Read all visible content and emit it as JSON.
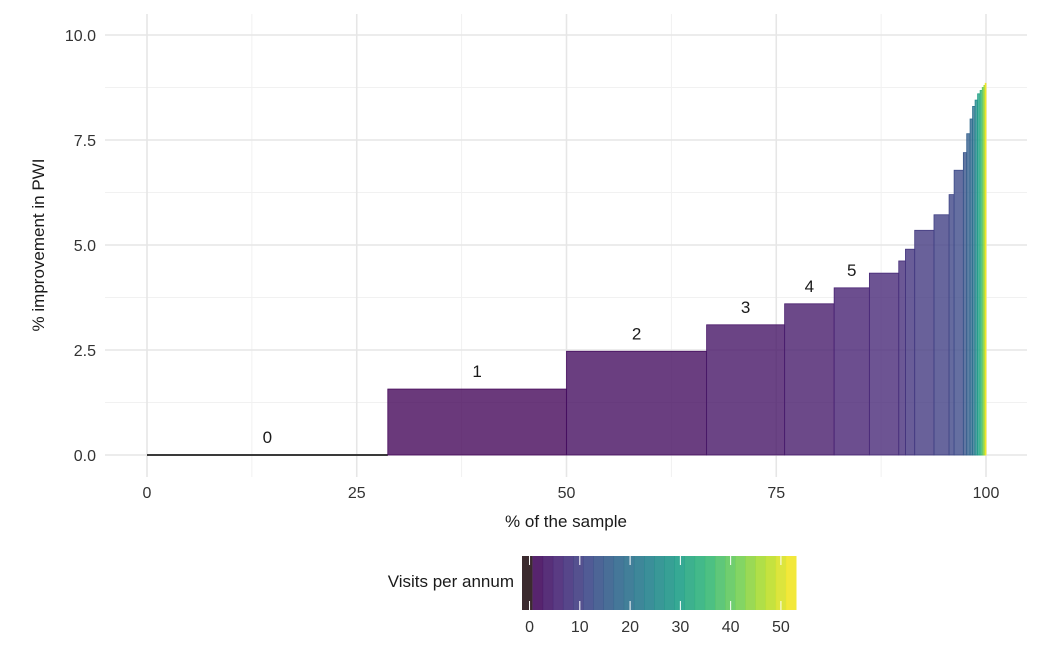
{
  "chart_data": {
    "type": "bar",
    "subtype": "variable-width step bars (cumulative sample share vs improvement)",
    "xlabel": "% of the sample",
    "ylabel": "% improvement in PWI",
    "xlim": [
      0,
      100
    ],
    "ylim": [
      0,
      10
    ],
    "x_ticks": [
      "0",
      "25",
      "50",
      "75",
      "100"
    ],
    "x_tick_values": [
      0,
      25,
      50,
      75,
      100
    ],
    "y_ticks": [
      "0.0",
      "2.5",
      "5.0",
      "7.5",
      "10.0"
    ],
    "y_tick_values": [
      0,
      2.5,
      5,
      7.5,
      10
    ],
    "grid": true,
    "segments": [
      {
        "label": "0",
        "visits": 0,
        "x_start": 0,
        "x_end": 28.7,
        "y": 0.0
      },
      {
        "label": "1",
        "visits": 1,
        "x_start": 28.7,
        "x_end": 50.0,
        "y": 1.57
      },
      {
        "label": "2",
        "visits": 2,
        "x_start": 50.0,
        "x_end": 66.7,
        "y": 2.47
      },
      {
        "label": "3",
        "visits": 3,
        "x_start": 66.7,
        "x_end": 76.0,
        "y": 3.1
      },
      {
        "label": "4",
        "visits": 4,
        "x_start": 76.0,
        "x_end": 81.9,
        "y": 3.6
      },
      {
        "label": "5",
        "visits": 5,
        "x_start": 81.9,
        "x_end": 86.1,
        "y": 3.98
      },
      {
        "label": "",
        "visits": 6,
        "x_start": 86.1,
        "x_end": 89.6,
        "y": 4.33
      },
      {
        "label": "",
        "visits": 7,
        "x_start": 89.6,
        "x_end": 90.4,
        "y": 4.62
      },
      {
        "label": "",
        "visits": 8,
        "x_start": 90.4,
        "x_end": 91.5,
        "y": 4.9
      },
      {
        "label": "",
        "visits": 9,
        "x_start": 91.5,
        "x_end": 93.8,
        "y": 5.35
      },
      {
        "label": "",
        "visits": 10,
        "x_start": 93.8,
        "x_end": 95.6,
        "y": 5.72
      },
      {
        "label": "",
        "visits": 11,
        "x_start": 95.6,
        "x_end": 96.2,
        "y": 6.2
      },
      {
        "label": "",
        "visits": 12,
        "x_start": 96.2,
        "x_end": 97.3,
        "y": 6.78
      },
      {
        "label": "",
        "visits": 14,
        "x_start": 97.3,
        "x_end": 97.7,
        "y": 7.2
      },
      {
        "label": "",
        "visits": 16,
        "x_start": 97.7,
        "x_end": 98.1,
        "y": 7.65
      },
      {
        "label": "",
        "visits": 18,
        "x_start": 98.1,
        "x_end": 98.4,
        "y": 8.0
      },
      {
        "label": "",
        "visits": 20,
        "x_start": 98.4,
        "x_end": 98.7,
        "y": 8.3
      },
      {
        "label": "",
        "visits": 25,
        "x_start": 98.7,
        "x_end": 99.0,
        "y": 8.45
      },
      {
        "label": "",
        "visits": 30,
        "x_start": 99.0,
        "x_end": 99.3,
        "y": 8.6
      },
      {
        "label": "",
        "visits": 35,
        "x_start": 99.3,
        "x_end": 99.55,
        "y": 8.68
      },
      {
        "label": "",
        "visits": 40,
        "x_start": 99.55,
        "x_end": 99.75,
        "y": 8.75
      },
      {
        "label": "",
        "visits": 45,
        "x_start": 99.75,
        "x_end": 99.9,
        "y": 8.8
      },
      {
        "label": "",
        "visits": 52,
        "x_start": 99.9,
        "x_end": 100.0,
        "y": 8.85
      }
    ],
    "legend": {
      "title": "Visits per annum",
      "position": "bottom",
      "ticks": [
        "0",
        "10",
        "20",
        "30",
        "40",
        "50"
      ],
      "tick_values": [
        0,
        10,
        20,
        30,
        40,
        50
      ],
      "range": [
        -1.5,
        53
      ],
      "zero_color": "#3b2a2e"
    },
    "palette": [
      "#440154",
      "#482878",
      "#3e4a89",
      "#31688e",
      "#26828e",
      "#1f9e89",
      "#35b779",
      "#6ece58",
      "#b5de2b",
      "#fde725"
    ]
  }
}
